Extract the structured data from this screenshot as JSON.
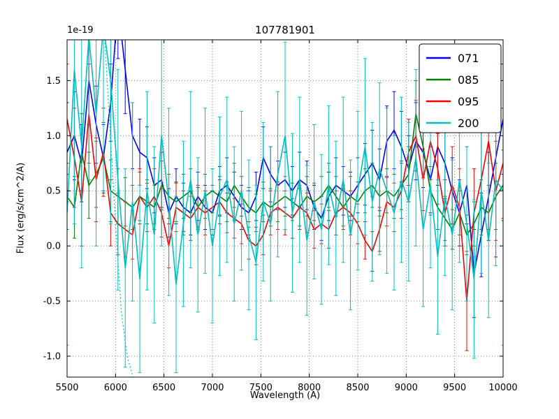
{
  "legend": [
    {
      "label": "071",
      "color": "#0000ee"
    },
    {
      "label": "085",
      "color": "#007f00"
    },
    {
      "label": "095",
      "color": "#ee0000"
    },
    {
      "label": "200",
      "color": "#00bfbf"
    }
  ],
  "chart_data": {
    "type": "line",
    "title": "107781901",
    "xlabel": "Wavelength (A)",
    "ylabel": "Flux (erg/s/cm^2/A)",
    "y_offset_label": "1e-19",
    "xlim": [
      5500,
      10000
    ],
    "ylim": [
      -1.19,
      1.87
    ],
    "grid": true,
    "legend_position": "upper right",
    "xticks": [
      5500,
      6000,
      6500,
      7000,
      7500,
      8000,
      8500,
      9000,
      9500,
      10000
    ],
    "xtick_labels": [
      "5500",
      "6000",
      "6500",
      "7000",
      "7500",
      "8000",
      "8500",
      "9000",
      "9500",
      "10000"
    ],
    "yticks": [
      -1.0,
      -0.5,
      0.0,
      0.5,
      1.0,
      1.5
    ],
    "ytick_labels": [
      "-1.0",
      "-0.5",
      "0.0",
      "0.5",
      "1.0",
      "1.5"
    ],
    "x": [
      5500,
      5575,
      5650,
      5725,
      5800,
      5875,
      5950,
      6025,
      6100,
      6175,
      6250,
      6325,
      6400,
      6475,
      6550,
      6625,
      6700,
      6775,
      6850,
      6925,
      7000,
      7075,
      7150,
      7225,
      7300,
      7375,
      7450,
      7525,
      7600,
      7675,
      7750,
      7825,
      7900,
      7975,
      8050,
      8125,
      8200,
      8275,
      8350,
      8425,
      8500,
      8575,
      8650,
      8725,
      8800,
      8875,
      8950,
      9025,
      9100,
      9175,
      9250,
      9325,
      9400,
      9475,
      9550,
      9625,
      9700,
      9775,
      9850,
      9925,
      10000
    ],
    "series": [
      {
        "name": "071",
        "color": "#0000ee",
        "style": "solid",
        "y": [
          0.85,
          1.0,
          0.75,
          1.5,
          1.1,
          0.8,
          1.3,
          2.2,
          1.6,
          1.0,
          0.85,
          0.8,
          0.55,
          0.6,
          0.3,
          0.45,
          0.35,
          0.3,
          0.45,
          0.35,
          0.3,
          0.5,
          0.55,
          0.45,
          0.35,
          0.3,
          0.45,
          0.8,
          0.65,
          0.55,
          0.6,
          0.5,
          0.6,
          0.55,
          0.35,
          0.25,
          0.45,
          0.55,
          0.5,
          0.45,
          0.55,
          0.65,
          0.75,
          0.6,
          0.95,
          1.05,
          0.9,
          0.7,
          0.95,
          0.85,
          0.6,
          0.9,
          0.75,
          0.5,
          0.3,
          0.55,
          -0.25,
          0.1,
          0.45,
          0.8,
          1.15
        ],
        "yerr": [
          0.45,
          0.4,
          0.35,
          0.4,
          0.35,
          0.3,
          0.35,
          0.5,
          0.4,
          0.3,
          0.3,
          0.28,
          0.25,
          0.25,
          0.22,
          0.25,
          0.22,
          0.2,
          0.22,
          0.2,
          0.2,
          0.22,
          0.25,
          0.22,
          0.2,
          0.2,
          0.22,
          0.28,
          0.25,
          0.22,
          0.25,
          0.22,
          0.25,
          0.22,
          0.2,
          0.2,
          0.22,
          0.25,
          0.22,
          0.22,
          0.25,
          0.28,
          0.3,
          0.28,
          0.32,
          0.35,
          0.32,
          0.3,
          0.35,
          0.32,
          0.3,
          0.35,
          0.32,
          0.3,
          0.3,
          0.35,
          0.4,
          0.38,
          0.4,
          0.9,
          0.5
        ]
      },
      {
        "name": "085",
        "color": "#007f00",
        "style": "solid",
        "y": [
          0.45,
          0.35,
          0.85,
          0.55,
          0.65,
          0.8,
          0.5,
          0.45,
          0.4,
          0.35,
          0.45,
          0.4,
          0.35,
          0.55,
          0.45,
          0.4,
          0.45,
          0.5,
          0.35,
          0.45,
          0.5,
          0.45,
          0.4,
          0.55,
          0.45,
          0.35,
          0.3,
          0.4,
          0.35,
          0.4,
          0.45,
          0.4,
          0.35,
          0.45,
          0.4,
          0.45,
          0.55,
          0.45,
          0.35,
          0.45,
          0.4,
          0.5,
          0.55,
          0.45,
          0.5,
          0.45,
          0.55,
          0.65,
          1.2,
          0.9,
          0.5,
          0.35,
          0.25,
          0.15,
          0.3,
          0.1,
          0.2,
          0.35,
          0.3,
          0.45,
          0.55
        ],
        "yerr": [
          0.3,
          0.28,
          0.35,
          0.3,
          0.3,
          0.32,
          0.28,
          0.25,
          0.22,
          0.2,
          0.22,
          0.2,
          0.2,
          0.22,
          0.2,
          0.18,
          0.2,
          0.2,
          0.18,
          0.2,
          0.2,
          0.18,
          0.18,
          0.2,
          0.18,
          0.18,
          0.17,
          0.18,
          0.17,
          0.18,
          0.18,
          0.17,
          0.17,
          0.18,
          0.17,
          0.18,
          0.2,
          0.18,
          0.17,
          0.18,
          0.18,
          0.2,
          0.2,
          0.18,
          0.2,
          0.2,
          0.22,
          0.25,
          0.3,
          0.28,
          0.22,
          0.2,
          0.2,
          0.18,
          0.2,
          0.18,
          0.2,
          0.25,
          0.25,
          0.3,
          0.32
        ]
      },
      {
        "name": "095",
        "color": "#ee0000",
        "style": "solid",
        "y": [
          1.15,
          0.8,
          0.4,
          1.2,
          0.6,
          0.85,
          0.3,
          0.2,
          0.15,
          0.1,
          0.45,
          0.35,
          0.45,
          0.3,
          0.0,
          0.35,
          0.3,
          0.25,
          0.35,
          0.3,
          0.35,
          0.4,
          0.3,
          0.25,
          0.2,
          0.05,
          0.0,
          0.1,
          0.3,
          0.35,
          0.3,
          0.25,
          0.35,
          0.3,
          0.15,
          0.2,
          0.15,
          0.3,
          0.35,
          0.3,
          0.2,
          0.05,
          -0.05,
          0.15,
          0.4,
          0.35,
          0.5,
          0.85,
          1.0,
          0.6,
          0.95,
          0.7,
          0.3,
          0.55,
          0.35,
          -0.5,
          0.3,
          0.6,
          0.95,
          0.5,
          0.75
        ],
        "yerr": [
          0.5,
          0.45,
          0.4,
          0.45,
          0.38,
          0.4,
          0.3,
          0.28,
          0.25,
          0.22,
          0.25,
          0.22,
          0.25,
          0.22,
          0.2,
          0.22,
          0.2,
          0.2,
          0.2,
          0.2,
          0.2,
          0.2,
          0.18,
          0.18,
          0.18,
          0.17,
          0.17,
          0.18,
          0.2,
          0.2,
          0.2,
          0.18,
          0.2,
          0.18,
          0.17,
          0.18,
          0.17,
          0.2,
          0.2,
          0.2,
          0.18,
          0.17,
          0.18,
          0.2,
          0.22,
          0.22,
          0.25,
          0.3,
          0.32,
          0.28,
          0.35,
          0.32,
          0.3,
          0.35,
          0.35,
          0.45,
          0.4,
          0.45,
          0.8,
          0.45,
          0.5
        ]
      },
      {
        "name": "200",
        "color": "#00bfbf",
        "style": "solid",
        "y": [
          0.3,
          1.6,
          0.9,
          1.9,
          1.2,
          2.0,
          1.5,
          0.6,
          -0.2,
          0.4,
          -0.3,
          0.5,
          0.1,
          1.0,
          0.4,
          -0.35,
          0.2,
          0.6,
          0.1,
          0.5,
          0.0,
          0.45,
          0.6,
          0.2,
          0.5,
          0.1,
          -0.15,
          0.4,
          0.2,
          0.65,
          1.0,
          0.3,
          0.6,
          0.05,
          0.4,
          0.15,
          0.55,
          0.25,
          0.6,
          0.1,
          0.5,
          0.9,
          0.4,
          0.7,
          0.5,
          0.3,
          0.6,
          0.4,
          0.8,
          0.15,
          0.55,
          -0.1,
          0.45,
          0.1,
          0.6,
          0.2,
          -0.3,
          0.5,
          0.05,
          0.6,
          0.5
        ],
        "yerr": [
          1.2,
          1.4,
          1.1,
          1.3,
          1.2,
          1.5,
          1.3,
          1.0,
          0.9,
          0.9,
          0.85,
          0.9,
          0.8,
          1.0,
          0.85,
          0.8,
          0.75,
          0.8,
          0.7,
          0.75,
          0.7,
          0.72,
          0.75,
          0.7,
          0.72,
          0.68,
          0.7,
          0.72,
          0.7,
          0.75,
          0.85,
          0.72,
          0.75,
          0.68,
          0.7,
          0.68,
          0.72,
          0.7,
          0.75,
          0.68,
          0.72,
          0.8,
          0.72,
          0.78,
          0.75,
          0.7,
          0.75,
          0.72,
          0.8,
          0.7,
          0.75,
          0.7,
          0.72,
          0.68,
          0.75,
          0.7,
          0.72,
          0.75,
          0.7,
          0.78,
          1.4
        ]
      },
      {
        "name": "200-dotted",
        "color": "#00bfbf",
        "style": "dotted",
        "x": [
          5880,
          5940,
          6000,
          6060,
          6120,
          6200
        ],
        "y": [
          2.0,
          1.1,
          0.2,
          -0.6,
          -1.0,
          -1.25
        ]
      }
    ]
  }
}
